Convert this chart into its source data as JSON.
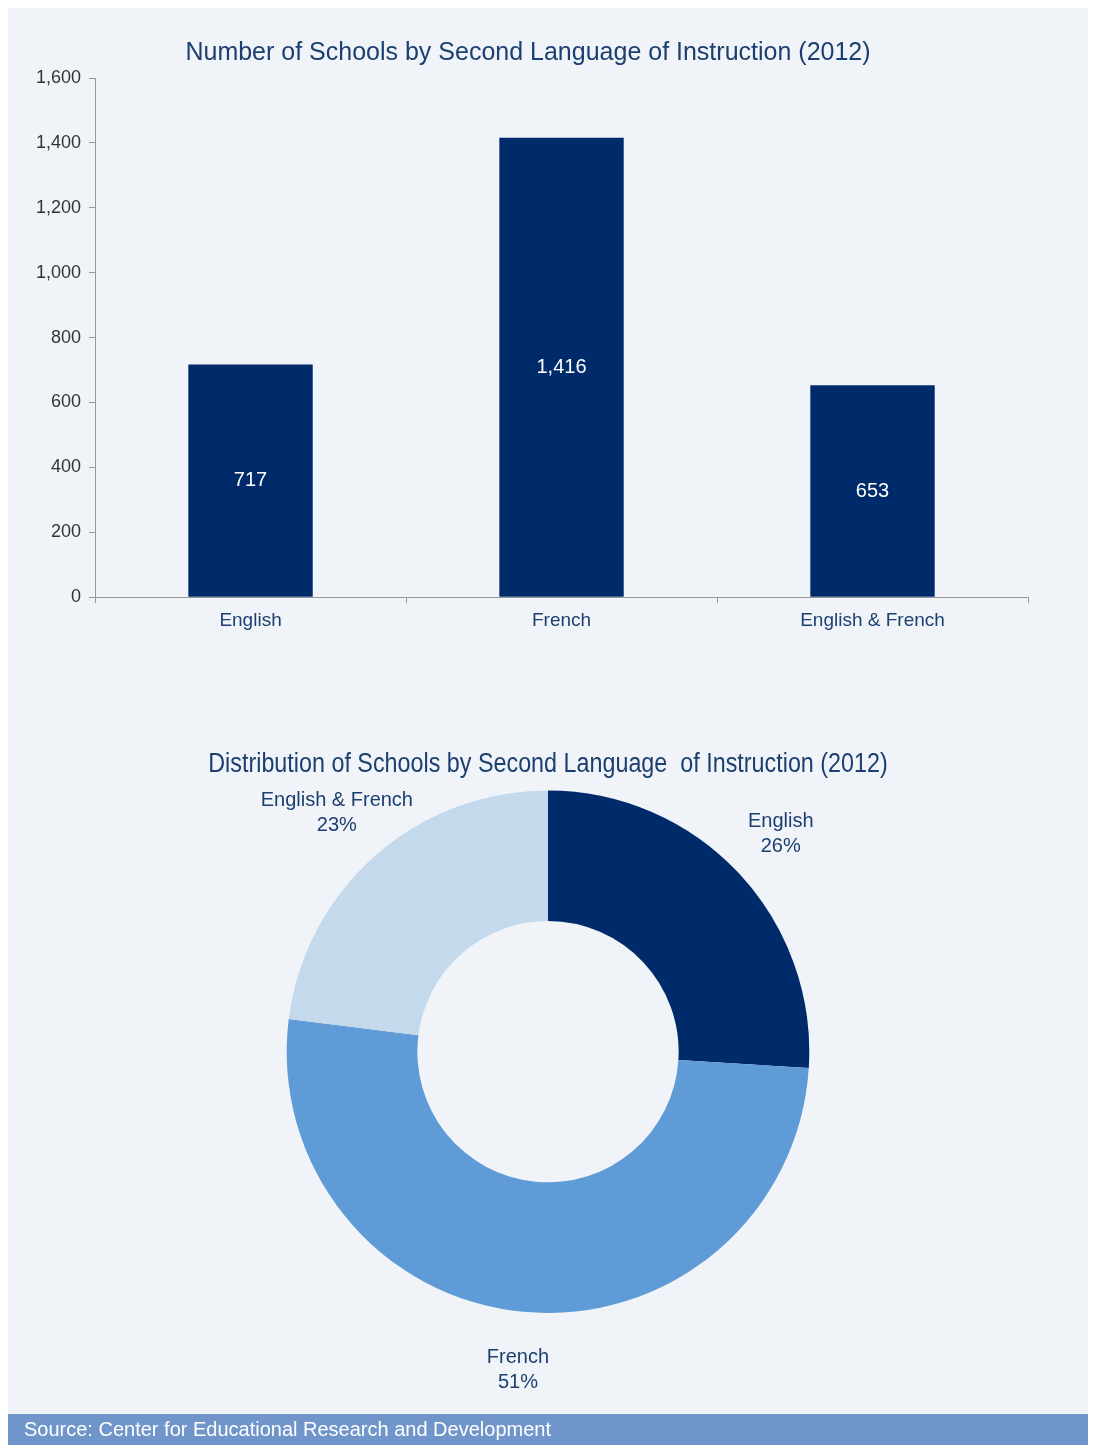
{
  "chart_data": [
    {
      "type": "bar",
      "title": "Number of Schools by Second Language of Instruction (2012)",
      "categories": [
        "English",
        "French",
        "English & French"
      ],
      "values": [
        717,
        1416,
        653
      ],
      "value_labels": [
        "717",
        "1,416",
        "653"
      ],
      "color": "#002b6b",
      "ylim": [
        0,
        1600
      ],
      "yticks": [
        0,
        {
          "value": 200,
          "label": "200"
        },
        {
          "value": 400,
          "label": "400"
        },
        {
          "value": 600,
          "label": "600"
        },
        {
          "value": 800,
          "label": "800"
        },
        {
          "value": 1000,
          "label": "1,000"
        },
        {
          "value": 1200,
          "label": "1,200"
        },
        {
          "value": 1400,
          "label": "1,400"
        },
        {
          "value": 1600,
          "label": "1,600"
        }
      ],
      "grid": false,
      "legend": false
    },
    {
      "type": "donut",
      "title": "Distribution of Schools by Second Language  of Instruction (2012)",
      "categories": [
        "English",
        "French",
        "English & French"
      ],
      "values": [
        26,
        51,
        23
      ],
      "value_labels": [
        "26%",
        "51%",
        "23%"
      ],
      "colors": [
        "#002b6b",
        "#5f9bd6",
        "#c5d9ed"
      ],
      "legend": false,
      "annotations": [
        "Source: Center for Educational Research and Development"
      ]
    }
  ]
}
